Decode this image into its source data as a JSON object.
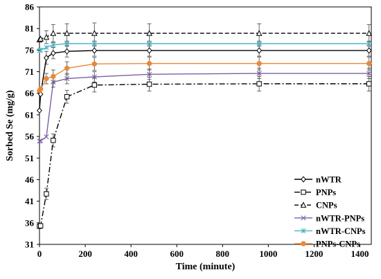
{
  "chart_data": {
    "type": "line",
    "xlabel": "Time (minute)",
    "ylabel": "Sorbed  Se (mg/g)",
    "xlim": [
      0,
      1450
    ],
    "ylim": [
      31,
      86
    ],
    "x_ticks": [
      0,
      200,
      400,
      600,
      800,
      1000,
      1200,
      1400
    ],
    "y_ticks": [
      31,
      36,
      41,
      46,
      51,
      56,
      61,
      66,
      71,
      76,
      81,
      86
    ],
    "grid": false,
    "legend_position": "bottom-right",
    "series": [
      {
        "name": "nWTR",
        "color": "#000000",
        "marker": "diamond",
        "line": "solid",
        "x": [
          0,
          5,
          30,
          60,
          120,
          240,
          480,
          960,
          1440
        ],
        "y": [
          62.0,
          65.8,
          74.2,
          75.3,
          75.7,
          75.9,
          75.9,
          75.9,
          75.9
        ],
        "err": [
          0,
          0,
          1.5,
          1.3,
          1.3,
          1.3,
          1.3,
          1.3,
          1.3
        ]
      },
      {
        "name": "PNPs",
        "color": "#000000",
        "marker": "square",
        "line": "dashdot",
        "x": [
          0,
          5,
          30,
          60,
          120,
          240,
          480,
          960,
          1440
        ],
        "y": [
          35.2,
          35.3,
          42.7,
          55.1,
          65.2,
          67.9,
          68.1,
          68.2,
          68.2
        ],
        "err": [
          0,
          0,
          1.3,
          1.5,
          1.5,
          1.6,
          1.6,
          1.7,
          1.7
        ]
      },
      {
        "name": "CNPs",
        "color": "#000000",
        "marker": "triangle",
        "line": "dashed",
        "x": [
          0,
          5,
          30,
          60,
          120,
          240,
          480,
          960,
          1440
        ],
        "y": [
          78.4,
          78.6,
          79.0,
          79.9,
          79.9,
          79.9,
          79.9,
          79.9,
          79.9
        ],
        "err": [
          0,
          0,
          1.5,
          2.0,
          2.2,
          2.4,
          2.2,
          2.2,
          2.0
        ]
      },
      {
        "name": "nWTR-PNPs",
        "color": "#7b5fa6",
        "marker": "x",
        "line": "solid",
        "x": [
          0,
          5,
          30,
          60,
          120,
          240,
          480,
          960,
          1440
        ],
        "y": [
          54.9,
          55.0,
          55.9,
          68.6,
          69.4,
          69.8,
          70.4,
          70.6,
          70.6
        ],
        "err": [
          0,
          0,
          0,
          1.2,
          1.2,
          1.2,
          1.2,
          1.2,
          1.2
        ]
      },
      {
        "name": "nWTR-CNPs",
        "color": "#4db3c3",
        "marker": "asterisk",
        "line": "solid",
        "x": [
          0,
          5,
          30,
          60,
          120,
          240,
          480,
          960,
          1440
        ],
        "y": [
          75.9,
          76.0,
          76.6,
          77.2,
          77.5,
          77.5,
          77.5,
          77.5,
          77.5
        ],
        "err": [
          0,
          0,
          0,
          0.6,
          0.6,
          0.6,
          0.6,
          0.6,
          0.6
        ]
      },
      {
        "name": "PNPs-CNPs",
        "color": "#e8893a",
        "marker": "circle",
        "line": "solid",
        "x": [
          0,
          5,
          30,
          60,
          120,
          240,
          480,
          960,
          1440
        ],
        "y": [
          66.6,
          67.0,
          69.4,
          69.9,
          71.8,
          72.8,
          72.9,
          72.9,
          72.9
        ],
        "err": [
          0,
          0,
          1.2,
          1.5,
          1.5,
          1.5,
          1.5,
          1.5,
          1.5
        ]
      }
    ]
  }
}
